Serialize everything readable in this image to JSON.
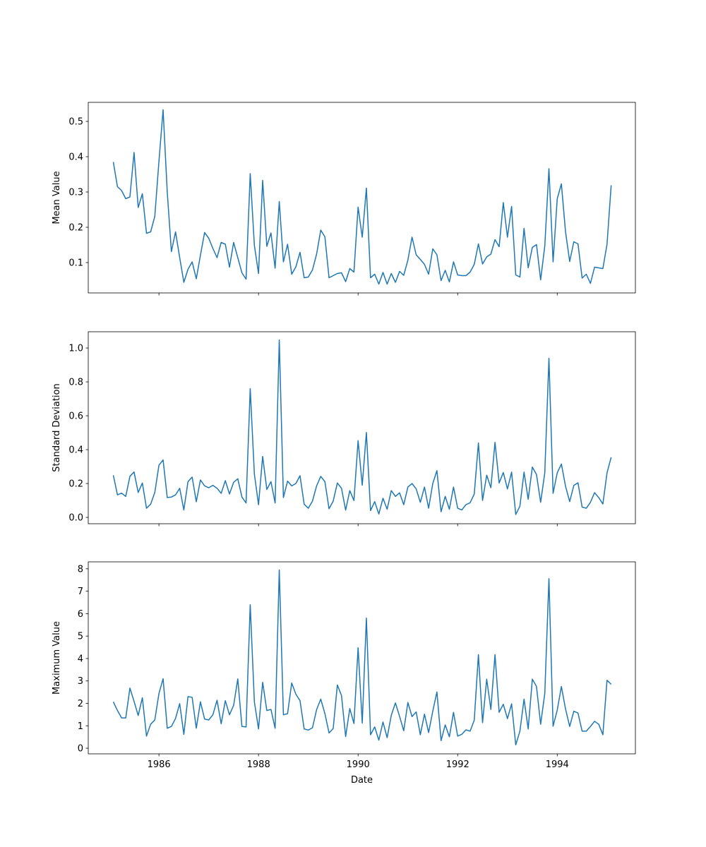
{
  "chart_data": [
    {
      "type": "line",
      "title": "",
      "xlabel": "",
      "ylabel": "Mean Value",
      "x_start": "1985-01-31",
      "x_frequency": "monthly",
      "xlim": [
        1984.58,
        1995.57
      ],
      "ylim": [
        0.014,
        0.554
      ],
      "yticks": [
        0.1,
        0.2,
        0.3,
        0.4,
        0.5
      ],
      "ytick_labels": [
        "0.1",
        "0.2",
        "0.3",
        "0.4",
        "0.5"
      ],
      "xticks": [
        1986,
        1988,
        1990,
        1992,
        1994
      ],
      "xtick_labels": [],
      "color": "#1f77b4",
      "grid": false,
      "values": [
        0.385,
        0.315,
        0.304,
        0.281,
        0.286,
        0.412,
        0.256,
        0.295,
        0.183,
        0.187,
        0.231,
        0.387,
        0.533,
        0.3,
        0.131,
        0.187,
        0.114,
        0.044,
        0.081,
        0.102,
        0.054,
        0.121,
        0.185,
        0.169,
        0.14,
        0.114,
        0.157,
        0.152,
        0.087,
        0.157,
        0.114,
        0.071,
        0.053,
        0.352,
        0.149,
        0.069,
        0.333,
        0.146,
        0.184,
        0.084,
        0.273,
        0.102,
        0.152,
        0.067,
        0.088,
        0.129,
        0.057,
        0.059,
        0.079,
        0.124,
        0.192,
        0.173,
        0.057,
        0.063,
        0.069,
        0.071,
        0.046,
        0.083,
        0.073,
        0.257,
        0.172,
        0.311,
        0.057,
        0.067,
        0.039,
        0.072,
        0.039,
        0.069,
        0.044,
        0.075,
        0.064,
        0.107,
        0.172,
        0.122,
        0.109,
        0.095,
        0.067,
        0.139,
        0.122,
        0.049,
        0.078,
        0.045,
        0.102,
        0.065,
        0.063,
        0.063,
        0.073,
        0.095,
        0.153,
        0.096,
        0.116,
        0.124,
        0.165,
        0.145,
        0.27,
        0.172,
        0.259,
        0.065,
        0.059,
        0.197,
        0.085,
        0.143,
        0.151,
        0.051,
        0.147,
        0.366,
        0.102,
        0.281,
        0.323,
        0.187,
        0.103,
        0.159,
        0.153,
        0.056,
        0.067,
        0.041,
        0.087,
        0.085,
        0.083,
        0.152,
        0.319
      ]
    },
    {
      "type": "line",
      "title": "",
      "xlabel": "",
      "ylabel": "Standard Deviation",
      "x_start": "1985-01-31",
      "x_frequency": "monthly",
      "xlim": [
        1984.58,
        1995.57
      ],
      "ylim": [
        -0.0375,
        1.096
      ],
      "yticks": [
        0.0,
        0.2,
        0.4,
        0.6,
        0.8,
        1.0
      ],
      "ytick_labels": [
        "0.0",
        "0.2",
        "0.4",
        "0.6",
        "0.8",
        "1.0"
      ],
      "xticks": [
        1986,
        1988,
        1990,
        1992,
        1994
      ],
      "xtick_labels": [],
      "color": "#1f77b4",
      "grid": false,
      "values": [
        0.249,
        0.133,
        0.143,
        0.124,
        0.242,
        0.268,
        0.147,
        0.203,
        0.054,
        0.078,
        0.147,
        0.308,
        0.339,
        0.117,
        0.12,
        0.133,
        0.172,
        0.044,
        0.211,
        0.238,
        0.092,
        0.221,
        0.186,
        0.175,
        0.189,
        0.172,
        0.142,
        0.217,
        0.138,
        0.207,
        0.228,
        0.12,
        0.085,
        0.76,
        0.256,
        0.075,
        0.36,
        0.165,
        0.211,
        0.085,
        1.047,
        0.117,
        0.214,
        0.186,
        0.2,
        0.246,
        0.078,
        0.054,
        0.096,
        0.186,
        0.242,
        0.211,
        0.051,
        0.096,
        0.203,
        0.172,
        0.043,
        0.158,
        0.099,
        0.453,
        0.19,
        0.501,
        0.04,
        0.093,
        0.02,
        0.113,
        0.048,
        0.158,
        0.124,
        0.145,
        0.075,
        0.179,
        0.2,
        0.168,
        0.089,
        0.179,
        0.054,
        0.2,
        0.276,
        0.033,
        0.124,
        0.048,
        0.179,
        0.054,
        0.044,
        0.075,
        0.086,
        0.138,
        0.439,
        0.1,
        0.249,
        0.175,
        0.443,
        0.203,
        0.265,
        0.168,
        0.267,
        0.017,
        0.066,
        0.267,
        0.107,
        0.297,
        0.253,
        0.089,
        0.263,
        0.939,
        0.142,
        0.263,
        0.315,
        0.184,
        0.093,
        0.189,
        0.204,
        0.061,
        0.054,
        0.089,
        0.146,
        0.117,
        0.079,
        0.263,
        0.355
      ]
    },
    {
      "type": "line",
      "title": "",
      "xlabel": "Date",
      "ylabel": "Maximum Value",
      "x_start": "1985-01-31",
      "x_frequency": "monthly",
      "xlim": [
        1984.58,
        1995.57
      ],
      "ylim": [
        -0.25,
        8.31
      ],
      "yticks": [
        0,
        1,
        2,
        3,
        4,
        5,
        6,
        7,
        8
      ],
      "ytick_labels": [
        "0",
        "1",
        "2",
        "3",
        "4",
        "5",
        "6",
        "7",
        "8"
      ],
      "xticks": [
        1986,
        1988,
        1990,
        1992,
        1994
      ],
      "xtick_labels": [
        "1986",
        "1988",
        "1990",
        "1992",
        "1994"
      ],
      "color": "#1f77b4",
      "grid": false,
      "values": [
        2.07,
        1.68,
        1.35,
        1.35,
        2.68,
        2.09,
        1.46,
        2.25,
        0.54,
        1.07,
        1.26,
        2.44,
        3.1,
        0.89,
        0.97,
        1.33,
        1.99,
        0.62,
        2.3,
        2.27,
        0.89,
        2.07,
        1.3,
        1.26,
        1.49,
        2.14,
        1.09,
        2.12,
        1.49,
        1.91,
        3.09,
        0.97,
        0.95,
        6.4,
        2.07,
        0.86,
        2.94,
        1.68,
        1.73,
        0.89,
        7.95,
        1.49,
        1.54,
        2.91,
        2.41,
        2.12,
        0.86,
        0.81,
        0.91,
        1.72,
        2.19,
        1.54,
        0.68,
        0.88,
        2.82,
        2.35,
        0.52,
        1.77,
        1.1,
        4.48,
        1.12,
        5.8,
        0.6,
        0.95,
        0.36,
        1.17,
        0.47,
        1.47,
        2.02,
        1.42,
        0.78,
        2.04,
        1.41,
        1.62,
        0.6,
        1.52,
        0.7,
        1.65,
        2.51,
        0.34,
        1.04,
        0.51,
        1.6,
        0.54,
        0.62,
        0.82,
        0.76,
        1.25,
        4.17,
        1.14,
        3.08,
        1.73,
        4.17,
        1.6,
        1.96,
        1.32,
        1.98,
        0.15,
        0.76,
        2.19,
        0.86,
        3.08,
        2.75,
        1.07,
        2.44,
        7.56,
        0.98,
        1.7,
        2.75,
        1.75,
        0.97,
        1.65,
        1.57,
        0.76,
        0.76,
        0.97,
        1.2,
        1.07,
        0.6,
        3.03,
        2.85
      ]
    }
  ]
}
